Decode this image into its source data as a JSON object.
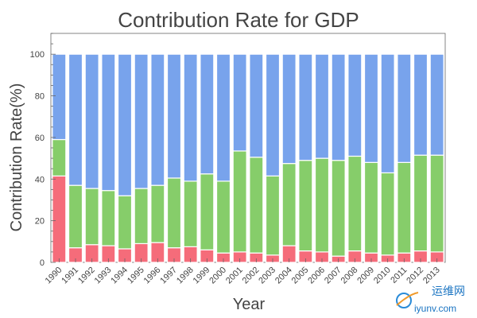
{
  "chart_data": {
    "type": "bar",
    "stacked": true,
    "title": "Contribution Rate for GDP",
    "xlabel": "Year",
    "ylabel": "Contribution Rate(%)",
    "ylim": [
      0,
      110
    ],
    "yticks": [
      0,
      20,
      40,
      60,
      80,
      100
    ],
    "categories": [
      "1990",
      "1991",
      "1992",
      "1993",
      "1994",
      "1995",
      "1996",
      "1997",
      "1998",
      "1999",
      "2000",
      "2001",
      "2002",
      "2003",
      "2004",
      "2005",
      "2006",
      "2007",
      "2008",
      "2009",
      "2010",
      "2011",
      "2012",
      "2013"
    ],
    "series": [
      {
        "color": "#f56c7a",
        "values": [
          41.5,
          7,
          8.5,
          8,
          6.5,
          9,
          9.5,
          7,
          7.5,
          6,
          4.5,
          5,
          4.5,
          3.5,
          8,
          5.5,
          5,
          3,
          5.5,
          4.5,
          3.5,
          4.5,
          5.5,
          5
        ]
      },
      {
        "color": "#86cd6a",
        "values": [
          17.5,
          30,
          27,
          26.5,
          25.5,
          26.5,
          27.5,
          33.5,
          31.5,
          36.5,
          34.5,
          48.5,
          46,
          38,
          39.5,
          43.5,
          45,
          46,
          45.5,
          43.5,
          39.5,
          43.5,
          46,
          46.5
        ]
      },
      {
        "color": "#78a3ec",
        "values": [
          41,
          63,
          64.5,
          65.5,
          68,
          64.5,
          63,
          59.5,
          61,
          57.5,
          61,
          46.5,
          49.5,
          58.5,
          52.5,
          51,
          50,
          51,
          49,
          52,
          57,
          52,
          48.5,
          48.5
        ]
      }
    ],
    "grid": false,
    "legend": "none"
  },
  "watermark": {
    "cn_text": "运维网",
    "url_text": "iyunv.com"
  }
}
